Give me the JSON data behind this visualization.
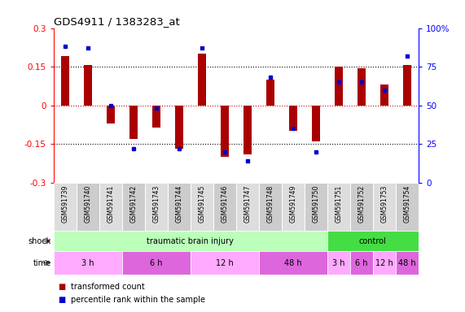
{
  "title": "GDS4911 / 1383283_at",
  "samples": [
    "GSM591739",
    "GSM591740",
    "GSM591741",
    "GSM591742",
    "GSM591743",
    "GSM591744",
    "GSM591745",
    "GSM591746",
    "GSM591747",
    "GSM591748",
    "GSM591749",
    "GSM591750",
    "GSM591751",
    "GSM591752",
    "GSM591753",
    "GSM591754"
  ],
  "bar_values": [
    0.19,
    0.155,
    -0.07,
    -0.13,
    -0.085,
    -0.17,
    0.2,
    -0.2,
    -0.19,
    0.1,
    -0.1,
    -0.14,
    0.15,
    0.145,
    0.08,
    0.155
  ],
  "dot_values": [
    88,
    87,
    50,
    22,
    48,
    22,
    87,
    20,
    14,
    68,
    35,
    20,
    65,
    65,
    60,
    82
  ],
  "bar_color": "#aa0000",
  "dot_color": "#0000cc",
  "ylim": [
    -0.3,
    0.3
  ],
  "yticks_left": [
    -0.3,
    -0.15,
    0.0,
    0.15,
    0.3
  ],
  "yticks_right": [
    0,
    25,
    50,
    75,
    100
  ],
  "hlines": [
    -0.15,
    0.0,
    0.15
  ],
  "shock_row": {
    "groups": [
      {
        "label": "traumatic brain injury",
        "start": 0,
        "end": 12,
        "color": "#bbffbb"
      },
      {
        "label": "control",
        "start": 12,
        "end": 16,
        "color": "#44dd44"
      }
    ]
  },
  "time_row": {
    "groups": [
      {
        "label": "3 h",
        "start": 0,
        "end": 3,
        "color": "#ffaaff"
      },
      {
        "label": "6 h",
        "start": 3,
        "end": 6,
        "color": "#dd66dd"
      },
      {
        "label": "12 h",
        "start": 6,
        "end": 9,
        "color": "#ffaaff"
      },
      {
        "label": "48 h",
        "start": 9,
        "end": 12,
        "color": "#dd66dd"
      },
      {
        "label": "3 h",
        "start": 12,
        "end": 13,
        "color": "#ffaaff"
      },
      {
        "label": "6 h",
        "start": 13,
        "end": 14,
        "color": "#dd66dd"
      },
      {
        "label": "12 h",
        "start": 14,
        "end": 15,
        "color": "#ffaaff"
      },
      {
        "label": "48 h",
        "start": 15,
        "end": 16,
        "color": "#dd66dd"
      }
    ]
  },
  "legend_items": [
    {
      "label": "transformed count",
      "color": "#aa0000"
    },
    {
      "label": "percentile rank within the sample",
      "color": "#0000cc"
    }
  ],
  "background_color": "#ffffff",
  "sample_box_color": "#cccccc",
  "figsize": [
    5.71,
    3.84
  ],
  "dpi": 100
}
